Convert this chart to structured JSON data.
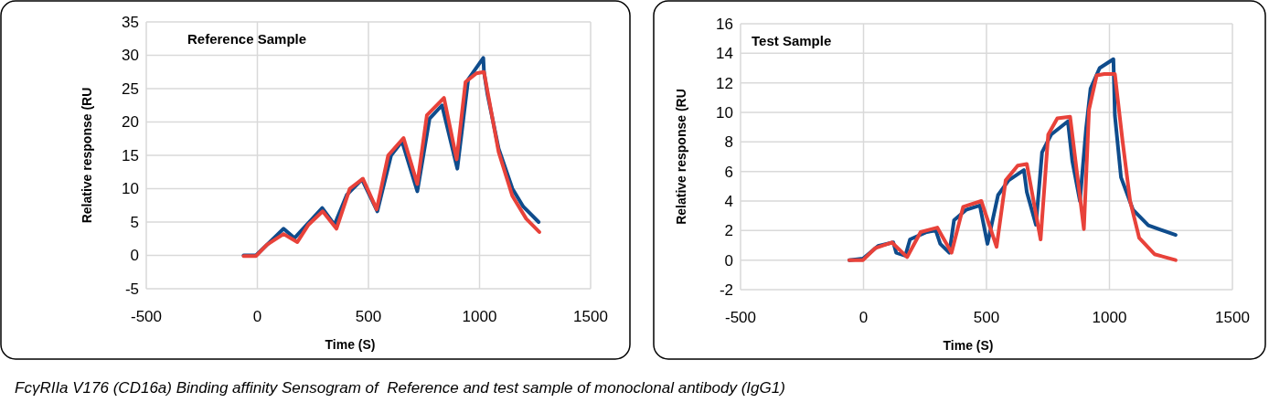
{
  "chart_data": [
    {
      "type": "line",
      "title": "Reference Sample",
      "xlabel": "Time (S)",
      "ylabel": "Relative response (RU",
      "xlim": [
        -500,
        1500
      ],
      "xticks": [
        -500,
        0,
        500,
        1000,
        1500
      ],
      "ylim": [
        -5,
        35
      ],
      "yticks": [
        -5,
        0,
        5,
        10,
        15,
        20,
        25,
        30,
        35
      ],
      "grid": true,
      "marker": "none",
      "line_style": "solid",
      "annotations": [
        "FcγRIIa V176 (CD16a) Binding affinity Sensogram of  Reference and test sample of monoclonal antibody (IgG1)"
      ],
      "series": [
        {
          "color": "#0f4c8c",
          "x": [
            -62,
            -6,
            118,
            167,
            292,
            347,
            403,
            471,
            540,
            602,
            651,
            720,
            775,
            831,
            900,
            949,
            1017,
            1020,
            1036,
            1086,
            1148,
            1197,
            1266
          ],
          "values": [
            0,
            0,
            4.0,
            2.6,
            7.1,
            4.6,
            9.1,
            11.4,
            6.6,
            15,
            17.1,
            9.6,
            20.5,
            22.5,
            13,
            26.4,
            29.6,
            27.5,
            24.1,
            16,
            10,
            7.3,
            5
          ]
        },
        {
          "color": "#e8423a",
          "x": [
            -62,
            -6,
            43,
            118,
            180,
            230,
            294,
            356,
            416,
            475,
            537,
            589,
            658,
            720,
            763,
            840,
            897,
            937,
            986,
            1020,
            1086,
            1148,
            1210,
            1269
          ],
          "values": [
            -0.1,
            -0.1,
            1.6,
            3.2,
            2.0,
            4.6,
            6.6,
            4.0,
            10,
            11.5,
            6.9,
            15,
            17.6,
            10.7,
            21,
            23.6,
            14.4,
            26,
            27.3,
            27.5,
            15.5,
            8.9,
            5.5,
            3.5
          ]
        }
      ]
    },
    {
      "type": "line",
      "title": "Test Sample",
      "xlabel": "Time (S)",
      "ylabel": "Relative response (RU",
      "xlim": [
        -500,
        1500
      ],
      "xticks": [
        -500,
        0,
        500,
        1000,
        1500
      ],
      "ylim": [
        -2,
        16
      ],
      "yticks": [
        -2,
        0,
        2,
        4,
        6,
        8,
        10,
        12,
        14,
        16
      ],
      "grid": true,
      "marker": "none",
      "line_style": "solid",
      "series": [
        {
          "color": "#0f4c8c",
          "x": [
            -58,
            -2,
            59,
            121,
            133,
            170,
            189,
            257,
            294,
            312,
            349,
            368,
            417,
            473,
            504,
            547,
            590,
            652,
            664,
            701,
            726,
            763,
            831,
            849,
            880,
            905,
            923,
            960,
            1016,
            1022,
            1047,
            1096,
            1158,
            1269
          ],
          "values": [
            0,
            0.1,
            0.95,
            1.2,
            0.5,
            0.3,
            1.4,
            1.9,
            2.0,
            1.1,
            0.5,
            2.7,
            3.4,
            3.7,
            1.1,
            4.4,
            5.4,
            6.1,
            4.6,
            2.4,
            7.3,
            8.5,
            9.4,
            6.7,
            4.0,
            8.9,
            11.6,
            13,
            13.6,
            9.8,
            5.6,
            3.4,
            2.35,
            1.7
          ]
        },
        {
          "color": "#e8423a",
          "x": [
            -58,
            -2,
            47,
            115,
            177,
            232,
            300,
            358,
            405,
            479,
            541,
            578,
            627,
            664,
            720,
            751,
            788,
            840,
            896,
            917,
            948,
            979,
            1022,
            1053,
            1084,
            1121,
            1183,
            1269
          ],
          "values": [
            0,
            0,
            0.8,
            1.2,
            0.2,
            1.9,
            2.2,
            0.5,
            3.6,
            4.0,
            0.9,
            5.4,
            6.4,
            6.5,
            1.4,
            8.5,
            9.6,
            9.7,
            2.1,
            10.2,
            12.5,
            12.6,
            12.6,
            8.1,
            4.0,
            1.5,
            0.4,
            0
          ]
        }
      ]
    }
  ]
}
